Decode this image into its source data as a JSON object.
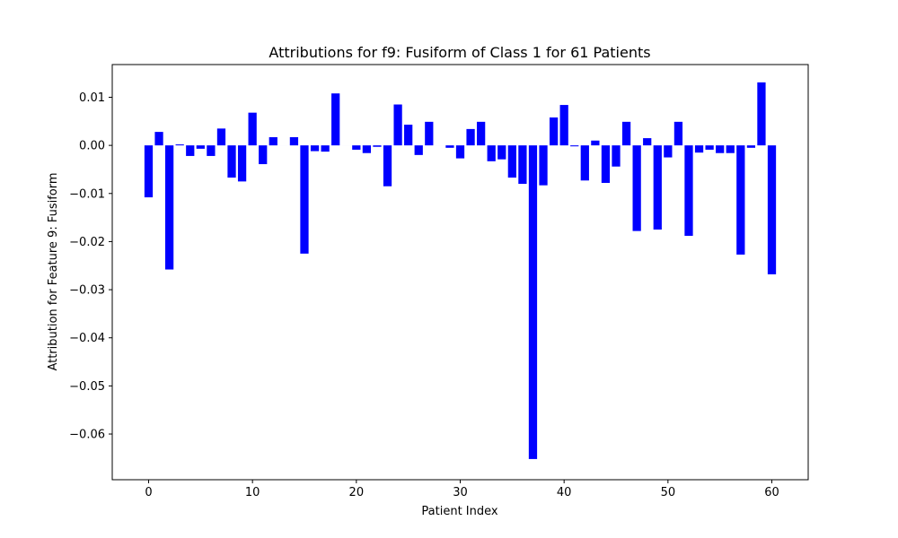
{
  "chart_data": {
    "type": "bar",
    "title": "Attributions for f9: Fusiform of Class 1 for 61 Patients",
    "xlabel": "Patient Index",
    "ylabel": "Attribution for Feature 9: Fusiform",
    "bar_color": "#0000ff",
    "xlim": [
      -3.5,
      63.5
    ],
    "ylim": [
      -0.0695,
      0.0168
    ],
    "xticks": [
      0,
      10,
      20,
      30,
      40,
      50,
      60
    ],
    "yticks": [
      0.01,
      0.0,
      -0.01,
      -0.02,
      -0.03,
      -0.04,
      -0.05,
      -0.06
    ],
    "ytick_labels": [
      "0.01",
      "0.00",
      "−0.01",
      "−0.02",
      "−0.03",
      "−0.04",
      "−0.05",
      "−0.06"
    ],
    "x": [
      0,
      1,
      2,
      3,
      4,
      5,
      6,
      7,
      8,
      9,
      10,
      11,
      12,
      13,
      14,
      15,
      16,
      17,
      18,
      19,
      20,
      21,
      22,
      23,
      24,
      25,
      26,
      27,
      28,
      29,
      30,
      31,
      32,
      33,
      34,
      35,
      36,
      37,
      38,
      39,
      40,
      41,
      42,
      43,
      44,
      45,
      46,
      47,
      48,
      49,
      50,
      51,
      52,
      53,
      54,
      55,
      56,
      57,
      58,
      59,
      60
    ],
    "values": [
      -0.0108,
      0.0028,
      -0.0258,
      0.0002,
      -0.0022,
      -0.0007,
      -0.0022,
      0.0035,
      -0.0067,
      -0.0075,
      0.0068,
      -0.0039,
      0.0017,
      0.0,
      0.0017,
      -0.0225,
      -0.0012,
      -0.0013,
      0.0108,
      0.0,
      -0.0009,
      -0.0016,
      -0.0003,
      -0.0085,
      0.0085,
      0.0043,
      -0.002,
      0.0049,
      0.0,
      -0.0005,
      -0.0027,
      0.0034,
      0.0049,
      -0.0033,
      -0.0029,
      -0.0067,
      -0.008,
      -0.0652,
      -0.0083,
      0.0058,
      0.0084,
      -0.0002,
      -0.0073,
      0.001,
      -0.0078,
      -0.0044,
      0.0049,
      -0.0178,
      0.0015,
      -0.0175,
      -0.0025,
      0.0049,
      -0.0188,
      -0.0015,
      -0.0009,
      -0.0016,
      -0.0016,
      -0.0227,
      -0.0005,
      0.0131,
      -0.0268
    ]
  }
}
